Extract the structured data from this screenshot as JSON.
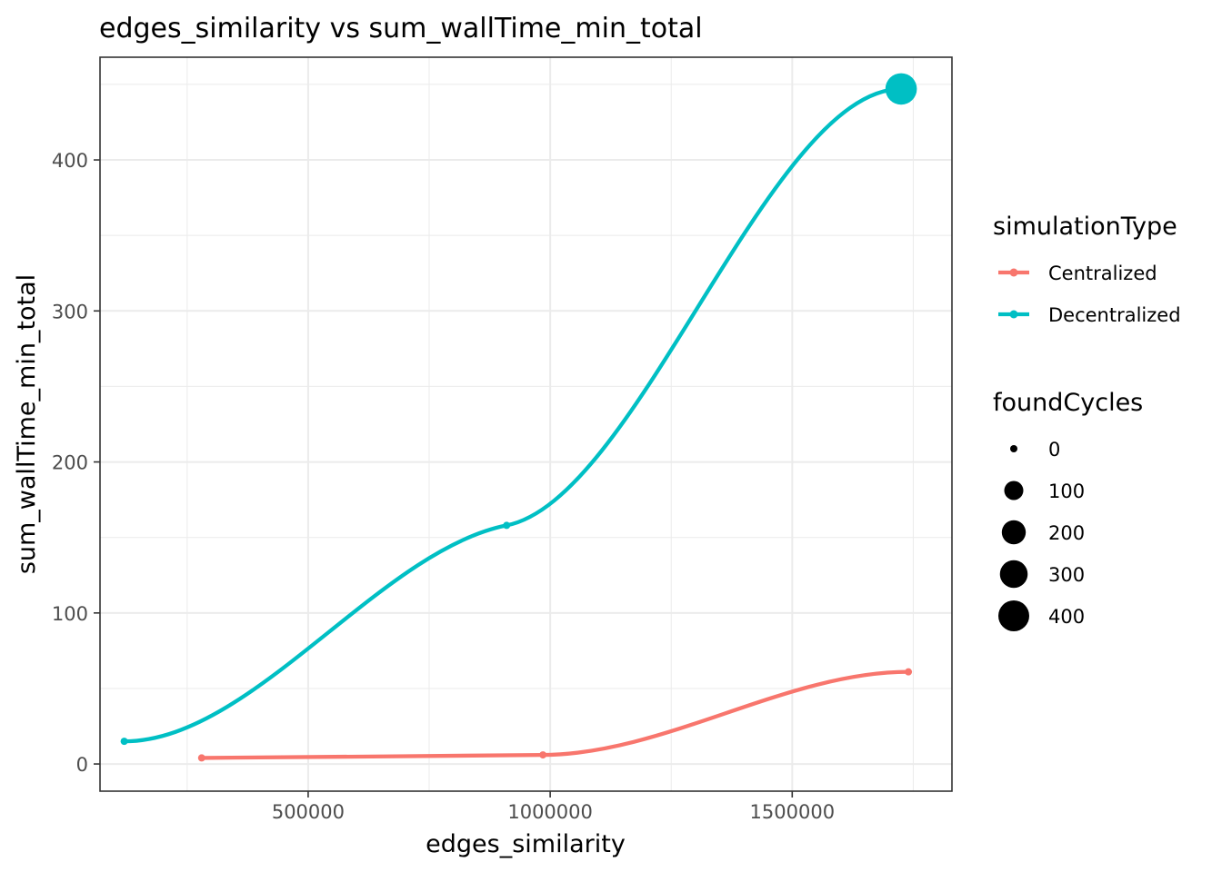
{
  "chart_data": {
    "type": "line",
    "title": "edges_similarity  vs  sum_wallTime_min_total",
    "xlabel": "edges_similarity",
    "ylabel": "sum_wallTime_min_total",
    "xlim": [
      70000,
      1830000
    ],
    "ylim": [
      -18,
      468
    ],
    "x_ticks": [
      500000,
      1000000,
      1500000
    ],
    "x_tick_labels": [
      "500000",
      "1000000",
      "1500000"
    ],
    "y_ticks": [
      0,
      100,
      200,
      300,
      400
    ],
    "y_tick_labels": [
      "0",
      "100",
      "200",
      "300",
      "400"
    ],
    "grid": true,
    "legend_position": "right",
    "series": [
      {
        "name": "Centralized",
        "color": "#F8766D",
        "points": [
          {
            "x": 280000,
            "y": 4,
            "foundCycles": 0
          },
          {
            "x": 985000,
            "y": 6,
            "foundCycles": 0
          },
          {
            "x": 1740000,
            "y": 61,
            "foundCycles": 0
          }
        ]
      },
      {
        "name": "Decentralized",
        "color": "#00BFC4",
        "points": [
          {
            "x": 120000,
            "y": 15,
            "foundCycles": 0
          },
          {
            "x": 910000,
            "y": 158,
            "foundCycles": 0
          },
          {
            "x": 1725000,
            "y": 447,
            "foundCycles": 420
          }
        ]
      }
    ],
    "legend": {
      "color_title": "simulationType",
      "color_items": [
        "Centralized",
        "Decentralized"
      ],
      "size_title": "foundCycles",
      "size_items": [
        "0",
        "100",
        "200",
        "300",
        "400"
      ]
    }
  }
}
